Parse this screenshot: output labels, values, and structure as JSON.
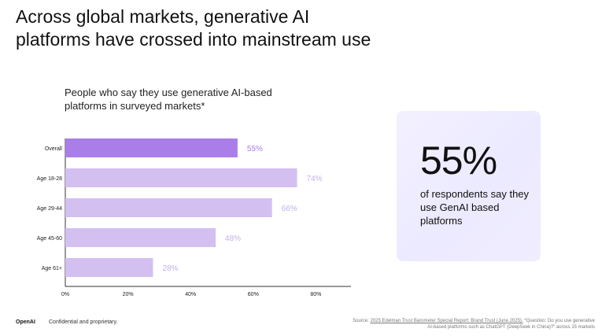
{
  "slide": {
    "title_lines": [
      "Across global markets, generative AI",
      "platforms have crossed into mainstream use"
    ]
  },
  "chart_data": {
    "type": "bar",
    "orientation": "horizontal",
    "subtitle_lines": [
      "People who say they use generative AI-based",
      "platforms in surveyed markets*"
    ],
    "categories": [
      "Overall",
      "Age 18-28",
      "Age 29-44",
      "Age 45-60",
      "Age 61+"
    ],
    "values": [
      55,
      74,
      66,
      48,
      28
    ],
    "data_labels": [
      "55%",
      "74%",
      "66%",
      "48%",
      "28%"
    ],
    "xlim": [
      0,
      90
    ],
    "x_ticks": [
      0,
      20,
      40,
      60,
      80
    ],
    "x_tick_labels": [
      "0%",
      "20%",
      "40%",
      "60%",
      "80%"
    ],
    "xlabel": "",
    "ylabel": "",
    "grid": false,
    "colors": {
      "highlight_bar": "#a97ee8",
      "bar": "#d3bff0",
      "highlight_label": "#a97ee8",
      "label": "#c3b1e6",
      "axis": "#333333"
    }
  },
  "stat_card": {
    "big_number": "55%",
    "description": "of respondents say they use GenAI based platforms"
  },
  "footer": {
    "brand": "OpenAI",
    "confidential": "Confidential and proprietary.",
    "source_prefix": "Source:",
    "source_link": "2025 Edelman Trust Barometer Special Report: Brand Trust (June 2025).",
    "source_rest": "*Question: Do you use generative AI-based platforms such as ChatGPT (DeepSeek in China)?\" across 15 markets"
  }
}
